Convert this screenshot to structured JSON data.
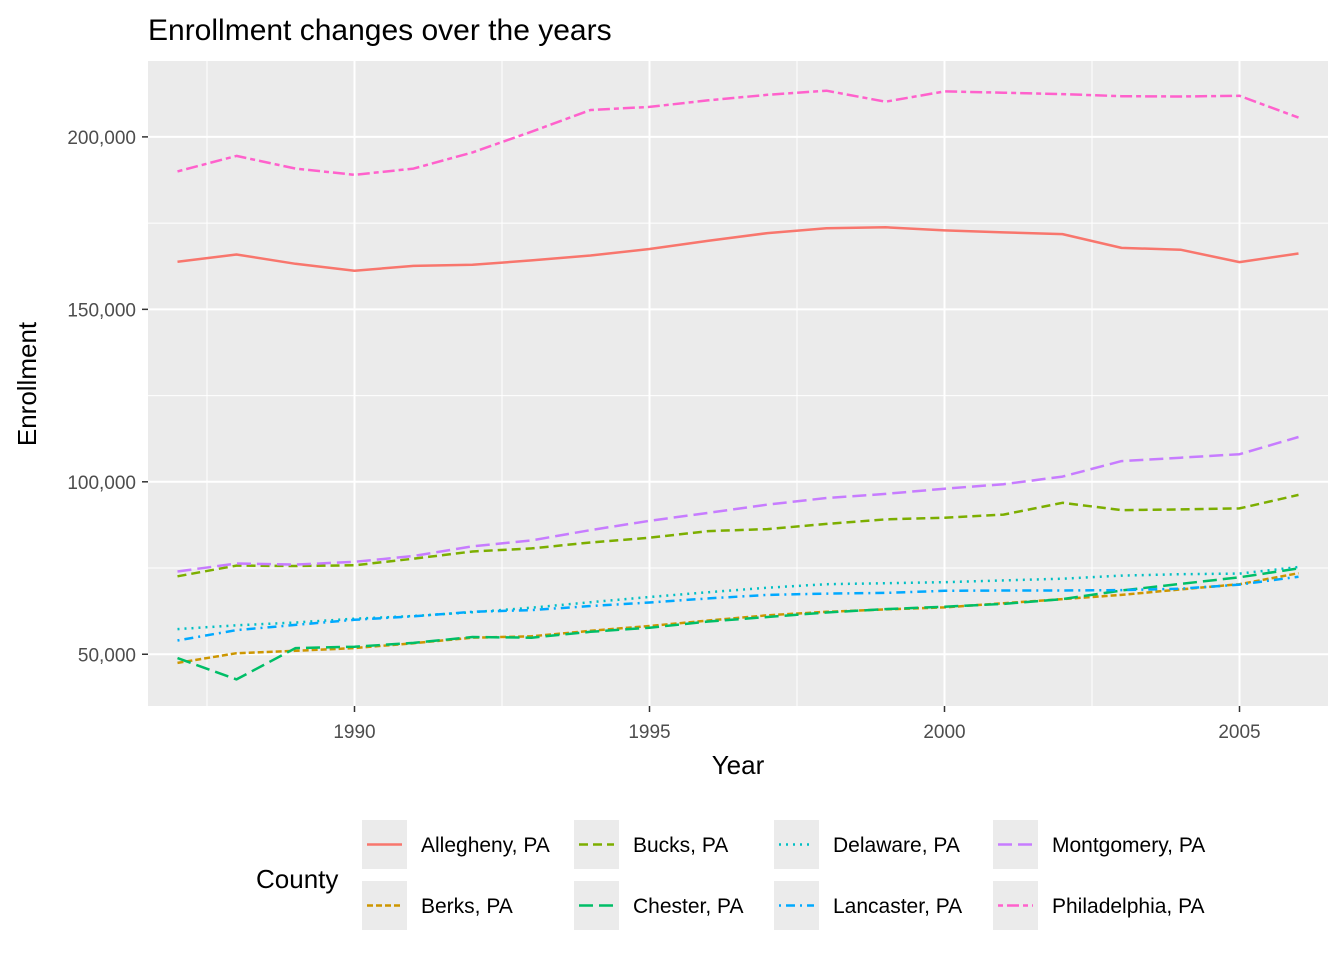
{
  "chart_data": {
    "type": "line",
    "title": "Enrollment changes over the years",
    "xlabel": "Year",
    "ylabel": "Enrollment",
    "xlim": [
      1986.5,
      2006.5
    ],
    "ylim": [
      35000,
      222000
    ],
    "x_ticks": [
      1990,
      1995,
      2000,
      2005
    ],
    "x_tick_labels": [
      "1990",
      "1995",
      "2000",
      "2005"
    ],
    "y_ticks": [
      50000,
      100000,
      150000,
      200000
    ],
    "y_tick_labels": [
      "50,000",
      "100,000",
      "150,000",
      "200,000"
    ],
    "grid": true,
    "panel_background": "#ebebeb",
    "grid_color": "#ffffff",
    "legend": {
      "title": "County",
      "position": "bottom"
    },
    "x": [
      1987,
      1988,
      1989,
      1990,
      1991,
      1992,
      1993,
      1994,
      1995,
      1996,
      1997,
      1998,
      1999,
      2000,
      2001,
      2002,
      2003,
      2004,
      2005,
      2006
    ],
    "series": [
      {
        "name": "Allegheny, PA",
        "color": "#F8766D",
        "linetype": "solid",
        "values": [
          163800,
          165900,
          163200,
          161200,
          162600,
          162900,
          164200,
          165600,
          167500,
          169900,
          172100,
          173500,
          173800,
          172900,
          172300,
          171800,
          167800,
          167300,
          163700,
          166200
        ]
      },
      {
        "name": "Berks, PA",
        "color": "#CD9600",
        "linetype": "dashed_fine",
        "values": [
          47500,
          50300,
          51000,
          51800,
          53200,
          54800,
          55200,
          56800,
          58200,
          59800,
          61300,
          62300,
          63000,
          63600,
          64800,
          66000,
          67200,
          68800,
          70300,
          73500
        ]
      },
      {
        "name": "Bucks, PA",
        "color": "#7CAE00",
        "linetype": "dashed",
        "values": [
          72600,
          75700,
          75600,
          75800,
          77700,
          79800,
          80700,
          82400,
          83800,
          85700,
          86300,
          87800,
          89100,
          89600,
          90500,
          93900,
          91800,
          92000,
          92300,
          96200
        ]
      },
      {
        "name": "Chester, PA",
        "color": "#00BE67",
        "linetype": "longdash",
        "values": [
          48900,
          42700,
          51800,
          52200,
          53300,
          55000,
          54800,
          56500,
          57700,
          59500,
          60800,
          62100,
          63100,
          63800,
          64600,
          66000,
          68500,
          70400,
          72300,
          74900
        ]
      },
      {
        "name": "Delaware, PA",
        "color": "#00BFC4",
        "linetype": "dotted",
        "values": [
          57300,
          58400,
          59200,
          60300,
          61100,
          62200,
          63500,
          65100,
          66600,
          68000,
          69300,
          70300,
          70600,
          70900,
          71400,
          71900,
          72800,
          73200,
          73400,
          75300
        ]
      },
      {
        "name": "Lancaster, PA",
        "color": "#00A9FF",
        "linetype": "dotdash",
        "values": [
          54000,
          57000,
          58500,
          60000,
          61000,
          62300,
          62800,
          64000,
          65000,
          66200,
          67200,
          67600,
          67800,
          68400,
          68500,
          68500,
          68600,
          69000,
          70200,
          72500
        ]
      },
      {
        "name": "Montgomery, PA",
        "color": "#C77CFF",
        "linetype": "longdash",
        "values": [
          74000,
          76300,
          76000,
          76800,
          78500,
          81300,
          83000,
          86000,
          88700,
          91000,
          93400,
          95300,
          96500,
          98000,
          99300,
          101500,
          106000,
          107000,
          108000,
          113000
        ]
      },
      {
        "name": "Philadelphia, PA",
        "color": "#FF61CC",
        "linetype": "twodash",
        "values": [
          190000,
          194500,
          190800,
          189000,
          190800,
          195500,
          201500,
          207800,
          208700,
          210600,
          212200,
          213400,
          210200,
          213200,
          212800,
          212400,
          211800,
          211700,
          211900,
          205600
        ]
      }
    ]
  }
}
